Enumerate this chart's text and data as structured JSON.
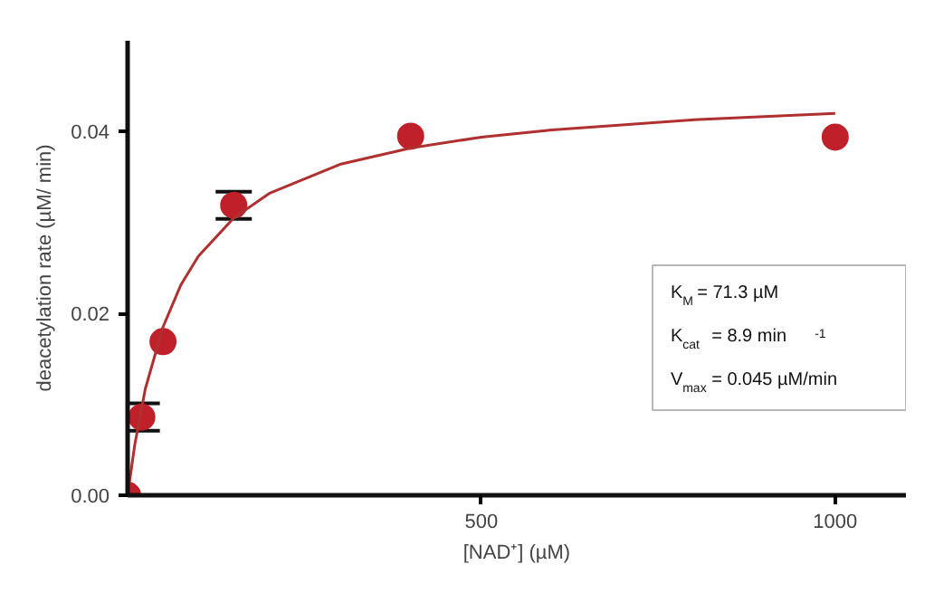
{
  "chart_data": {
    "type": "scatter",
    "xlabel": "[NAD⁺] (µM)",
    "ylabel": "deacetylation rate (µM/ min)",
    "xlim": [
      0,
      1100
    ],
    "ylim": [
      0,
      0.05
    ],
    "xticks": [
      500,
      1000
    ],
    "yticks": [
      {
        "value": 0,
        "label": "0.00"
      },
      {
        "value": 0.02,
        "label": "0.02"
      },
      {
        "value": 0.04,
        "label": "0.04"
      }
    ],
    "grid": false,
    "marker": "circle",
    "series": [
      {
        "color": "#c0202a",
        "x": [
          0,
          20,
          50,
          150,
          400,
          1000
        ],
        "values": [
          0,
          0.0086,
          0.0169,
          0.0319,
          0.0395,
          0.0394
        ],
        "errors": [
          null,
          0.0015,
          null,
          0.0015,
          null,
          null
        ]
      },
      {
        "type": "line",
        "color": "#b03030",
        "marker": "none",
        "line_style": "solid",
        "x": [
          0,
          10,
          25,
          50,
          75,
          100,
          150,
          200,
          300,
          400,
          500,
          600,
          800,
          1000
        ],
        "values": [
          0,
          0.0055,
          0.0117,
          0.0185,
          0.0231,
          0.0263,
          0.0305,
          0.0332,
          0.0364,
          0.0382,
          0.0394,
          0.0402,
          0.0413,
          0.042
        ]
      }
    ],
    "annotations": [
      "K$_{M}$ = 71.3 µM",
      "K$_{cat}$ = 8.9 min$^{-1}$",
      "V$_{max}$ = 0.045 µM/min"
    ]
  }
}
